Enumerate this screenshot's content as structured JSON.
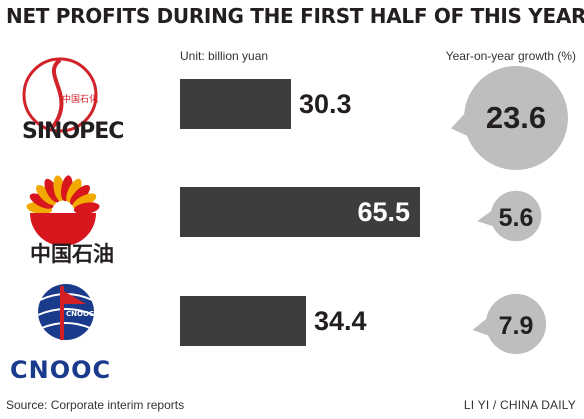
{
  "header": {
    "title": "NET PROFITS DURING THE FIRST HALF OF THIS YEAR",
    "unit_label": "Unit: billion yuan",
    "growth_label": "Year-on-year growth (%)"
  },
  "footer": {
    "source": "Source: Corporate interim reports",
    "credit": "LI YI / CHINA DAILY"
  },
  "logos": {
    "sinopec_wordmark": "SINOPEC",
    "sinopec_chinese": "中国石化",
    "petrochina_chinese": "中国石油",
    "cnooc_wordmark": "CNOOC",
    "cnooc_badge": "CNOOC"
  },
  "colors": {
    "bar": "#3d3d3d",
    "bubble": "#bcbec0",
    "sinopec_red": "#d2232a",
    "petrochina_red": "#d7161d",
    "petrochina_yellow": "#f2a900",
    "cnooc_blue": "#1a3a8c",
    "cnooc_red": "#d32027"
  },
  "chart_data": {
    "type": "bar",
    "orientation": "horizontal",
    "categories": [
      "Sinopec",
      "PetroChina",
      "CNOOC"
    ],
    "series": [
      {
        "values": [
          30.3,
          65.5,
          34.4
        ]
      },
      {
        "values": [
          23.6,
          5.6,
          7.9
        ]
      }
    ],
    "value_labels": [
      "30.3",
      "65.5",
      "34.4"
    ],
    "growth_labels": [
      "23.6",
      "5.6",
      "7.9"
    ],
    "xlim": [
      0,
      65.5
    ],
    "grid": false
  }
}
